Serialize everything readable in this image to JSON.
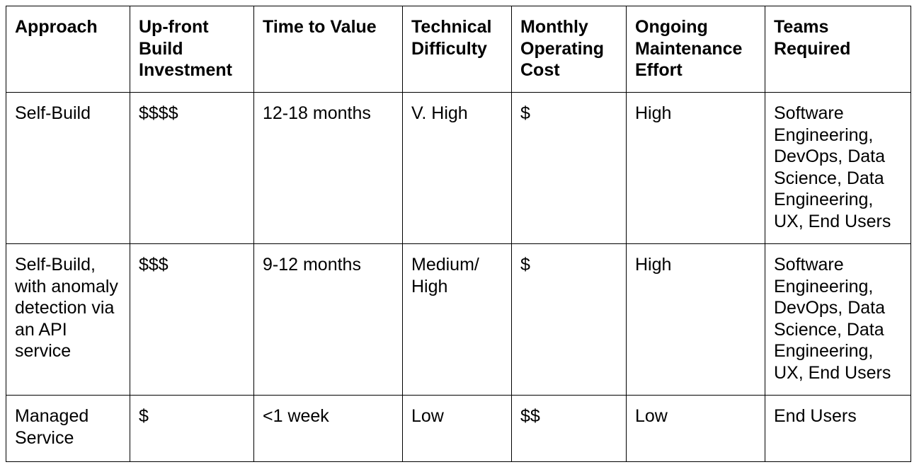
{
  "table": {
    "headers": [
      "Approach",
      "Up-front Build Investment",
      "Time to Value",
      "Technical Difficulty",
      "Monthly Operating Cost",
      "Ongoing Maintenance Effort",
      "Teams Required"
    ],
    "rows": [
      [
        "Self-Build",
        "$$$$",
        "12-18 months",
        "V. High",
        "$",
        "High",
        "Software Engineering, DevOps, Data Science, Data Engineering, UX, End Users"
      ],
      [
        "Self-Build, with anomaly detection via an API service",
        "$$$",
        "9-12 months",
        "Medium/ High",
        "$",
        "High",
        "Software Engineering, DevOps, Data Science, Data Engineering, UX, End Users"
      ],
      [
        "Managed Service",
        "$",
        "<1 week",
        "Low",
        "$$",
        "Low",
        "End Users"
      ]
    ]
  }
}
